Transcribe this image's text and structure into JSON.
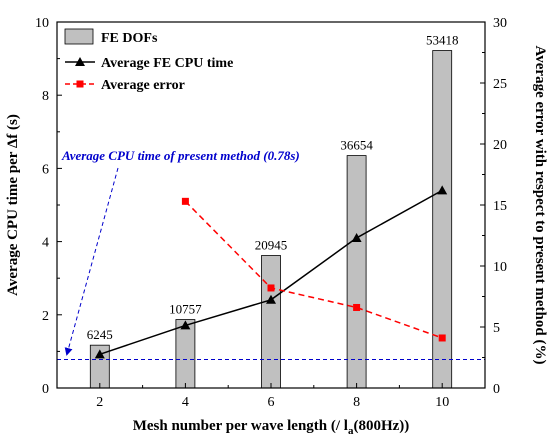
{
  "chart_data": {
    "type": "bar",
    "x": [
      2,
      4,
      6,
      8,
      10
    ],
    "xlabel": "Mesh number per wave length (/ l",
    "xlabel_sub": "a",
    "xlabel_tail": "(800Hz))",
    "xlim": [
      1,
      11
    ],
    "xticks": [
      "2",
      "4",
      "6",
      "8",
      "10"
    ],
    "ylabel_left": "Average CPU time per Δf (s)",
    "ylim_left": [
      0,
      10
    ],
    "yticks_left": [
      "0",
      "2",
      "4",
      "6",
      "8",
      "10"
    ],
    "ylabel_right": "Average error with respect to present method (%)",
    "ylim_right": [
      0,
      30
    ],
    "yticks_right": [
      "0",
      "5",
      "10",
      "15",
      "20",
      "25",
      "30"
    ],
    "series": [
      {
        "name": "FE DOFs",
        "kind": "bar",
        "axis": "left",
        "values": [
          1.17,
          1.87,
          3.62,
          6.35,
          9.22
        ],
        "data_labels": [
          "6245",
          "10757",
          "20945",
          "36654",
          "53418"
        ],
        "color": "#c0c0c0"
      },
      {
        "name": "Average FE CPU time",
        "kind": "line",
        "axis": "left",
        "marker": "triangle",
        "values": [
          0.92,
          1.71,
          2.41,
          4.1,
          5.4
        ],
        "color": "#000000"
      },
      {
        "name": "Average error",
        "kind": "line",
        "axis": "right",
        "marker": "square",
        "dashed": true,
        "x": [
          4,
          6,
          8,
          10
        ],
        "values": [
          15.3,
          8.2,
          6.6,
          4.1
        ],
        "color": "#ff0000"
      }
    ],
    "reference_line": {
      "axis": "left",
      "value": 0.78,
      "label": "Average CPU time of present method (0.78s)",
      "color": "#0000cc"
    },
    "legend_position": "top-left",
    "grid": false
  }
}
